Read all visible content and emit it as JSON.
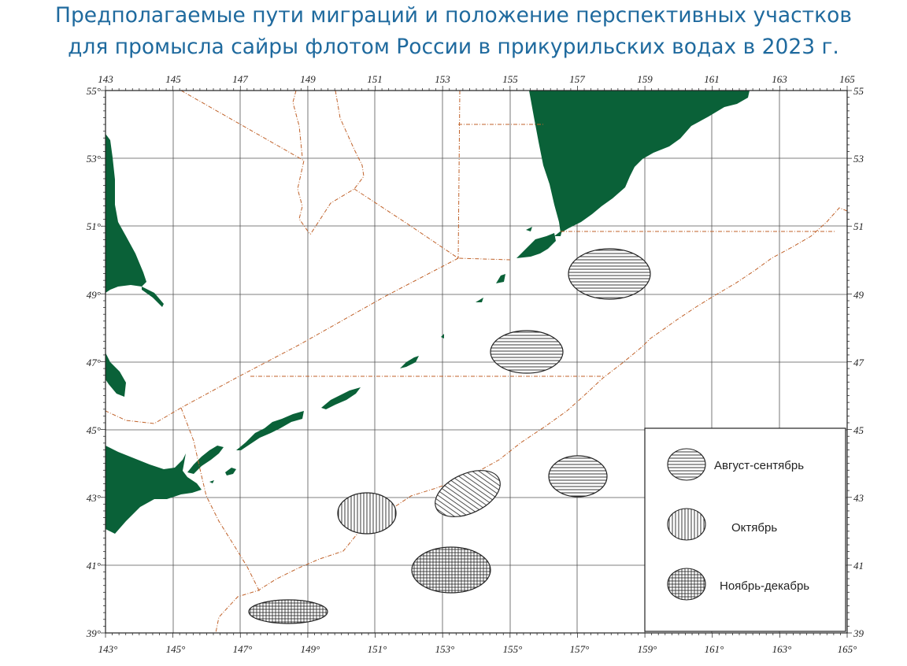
{
  "title": {
    "line1": "Предполагаемые пути миграций и положение перспективных участков",
    "line2": "для промысла сайры флотом России в прикурильских водах в 2023 г."
  },
  "map": {
    "lon_labels": [
      "143",
      "145",
      "147",
      "149",
      "151",
      "153",
      "155",
      "157",
      "159",
      "161",
      "163",
      "165"
    ],
    "lon_labels_bottom": [
      "143°",
      "145°",
      "147°",
      "149°",
      "151°",
      "153°",
      "155°",
      "157°",
      "159°",
      "161°",
      "163°",
      "165°"
    ],
    "lat_labels_left": [
      "55°",
      "53°",
      "51°",
      "49°",
      "47°",
      "45°",
      "43°",
      "41°",
      "39°"
    ],
    "lat_labels_right": [
      "55",
      "53",
      "51",
      "49",
      "47",
      "45",
      "43",
      "41",
      "39"
    ],
    "land_color": "#0a6138",
    "boundary_color": "#c0622a"
  },
  "legend": {
    "items": [
      {
        "label": "Август-сентябрь",
        "pattern": "horizontal-lines"
      },
      {
        "label": "Октябрь",
        "pattern": "vertical-lines"
      },
      {
        "label": "Ноябрь-декабрь",
        "pattern": "crosshatch"
      }
    ]
  }
}
